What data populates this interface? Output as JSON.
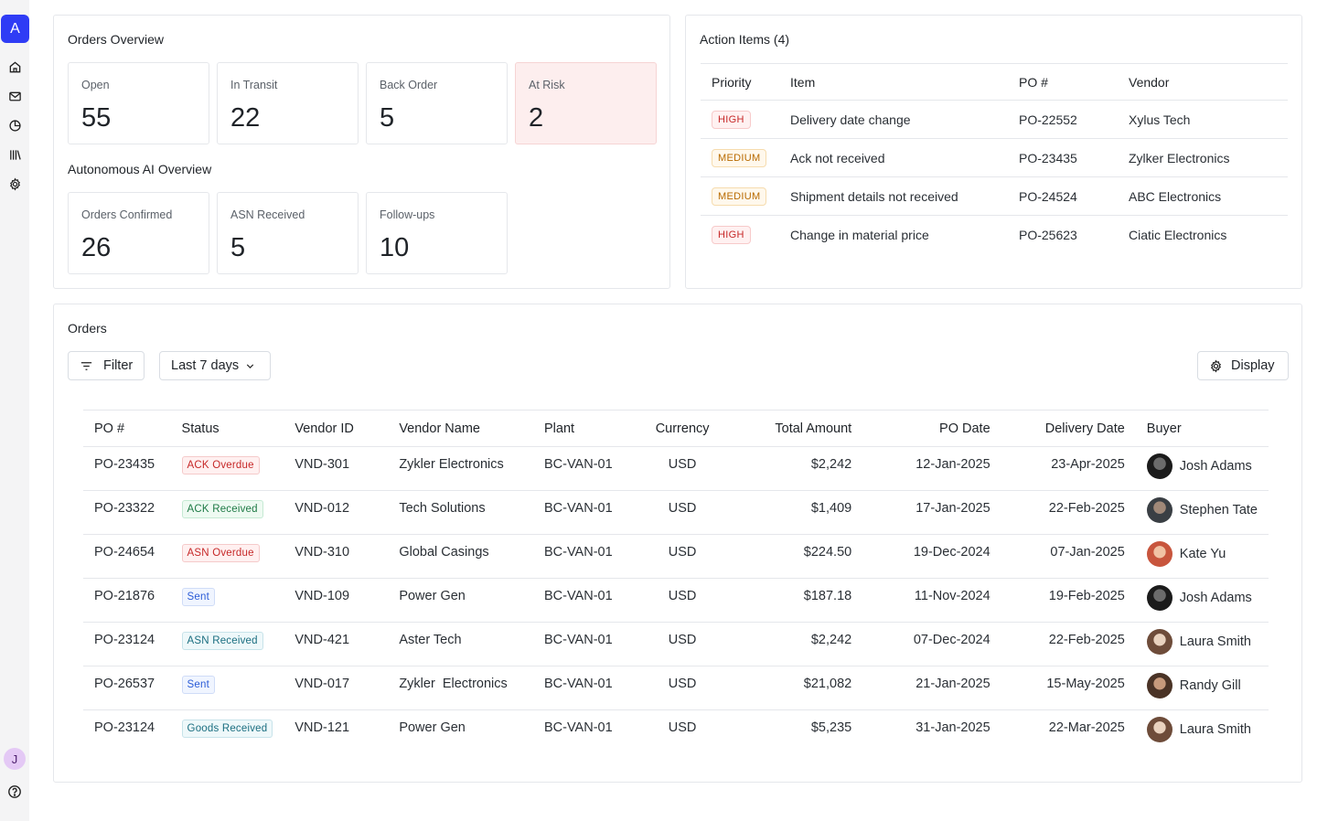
{
  "sidebar": {
    "logo": "A",
    "icons": [
      "home-icon",
      "mail-icon",
      "pie-chart-icon",
      "library-icon",
      "gear-icon"
    ],
    "user_initial": "J"
  },
  "orders_overview": {
    "title": "Orders Overview",
    "stats": [
      {
        "label": "Open",
        "value": "55"
      },
      {
        "label": "In Transit",
        "value": "22"
      },
      {
        "label": "Back Order",
        "value": "5"
      },
      {
        "label": "At Risk",
        "value": "2"
      }
    ]
  },
  "ai_overview": {
    "title": "Autonomous AI Overview",
    "stats": [
      {
        "label": "Orders Confirmed",
        "value": "26"
      },
      {
        "label": "ASN Received",
        "value": "5"
      },
      {
        "label": "Follow-ups",
        "value": "10"
      }
    ]
  },
  "action_items": {
    "title": "Action Items (4)",
    "columns": [
      "Priority",
      "Item",
      "PO #",
      "Vendor"
    ],
    "rows": [
      {
        "priority": "HIGH",
        "item": "Delivery date change",
        "po": "PO-22552",
        "vendor": "Xylus Tech"
      },
      {
        "priority": "MEDIUM",
        "item": "Ack not received",
        "po": "PO-23435",
        "vendor": "Zylker Electronics"
      },
      {
        "priority": "MEDIUM",
        "item": "Shipment details not received",
        "po": "PO-24524",
        "vendor": "ABC Electronics"
      },
      {
        "priority": "HIGH",
        "item": "Change in material price",
        "po": "PO-25623",
        "vendor": "Ciatic Electronics"
      }
    ]
  },
  "orders": {
    "title": "Orders",
    "filter_label": "Filter",
    "range_label": "Last 7 days",
    "display_label": "Display",
    "columns": [
      "PO #",
      "Status",
      "Vendor ID",
      "Vendor Name",
      "Plant",
      "Currency",
      "Total Amount",
      "PO Date",
      "Delivery Date",
      "Buyer"
    ],
    "rows": [
      {
        "po": "PO-23435",
        "status": "ACK Overdue",
        "vendor_id": "VND-301",
        "vendor_name": "Zykler Electronics",
        "plant": "BC-VAN-01",
        "currency": "USD",
        "amount": "$2,242",
        "po_date": "12-Jan-2025",
        "delivery_date": "23-Apr-2025",
        "buyer": "Josh Adams"
      },
      {
        "po": "PO-23322",
        "status": "ACK Received",
        "vendor_id": "VND-012",
        "vendor_name": "Tech Solutions",
        "plant": "BC-VAN-01",
        "currency": "USD",
        "amount": "$1,409",
        "po_date": "17-Jan-2025",
        "delivery_date": "22-Feb-2025",
        "buyer": "Stephen Tate"
      },
      {
        "po": "PO-24654",
        "status": "ASN Overdue",
        "vendor_id": "VND-310",
        "vendor_name": "Global Casings",
        "plant": "BC-VAN-01",
        "currency": "USD",
        "amount": "$224.50",
        "po_date": "19-Dec-2024",
        "delivery_date": "07-Jan-2025",
        "buyer": "Kate Yu"
      },
      {
        "po": "PO-21876",
        "status": "Sent",
        "vendor_id": "VND-109",
        "vendor_name": "Power Gen",
        "plant": "BC-VAN-01",
        "currency": "USD",
        "amount": "$187.18",
        "po_date": "11-Nov-2024",
        "delivery_date": "19-Feb-2025",
        "buyer": "Josh Adams"
      },
      {
        "po": "PO-23124",
        "status": "ASN Received",
        "vendor_id": "VND-421",
        "vendor_name": "Aster Tech",
        "plant": "BC-VAN-01",
        "currency": "USD",
        "amount": "$2,242",
        "po_date": "07-Dec-2024",
        "delivery_date": "22-Feb-2025",
        "buyer": "Laura Smith"
      },
      {
        "po": "PO-26537",
        "status": "Sent",
        "vendor_id": "VND-017",
        "vendor_name": "Zykler  Electronics",
        "plant": "BC-VAN-01",
        "currency": "USD",
        "amount": "$21,082",
        "po_date": "21-Jan-2025",
        "delivery_date": "15-May-2025",
        "buyer": "Randy Gill"
      },
      {
        "po": "PO-23124",
        "status": "Goods Received",
        "vendor_id": "VND-121",
        "vendor_name": "Power Gen",
        "plant": "BC-VAN-01",
        "currency": "USD",
        "amount": "$5,235",
        "po_date": "31-Jan-2025",
        "delivery_date": "22-Mar-2025",
        "buyer": "Laura Smith"
      }
    ]
  },
  "colors": {
    "accent": "#2f3cf5",
    "status_overdue": "#c62828",
    "status_received": "#1e7a45",
    "status_sent": "#2a5bd7",
    "status_asn_received": "#1a6e80",
    "priority_medium": "#b86a00",
    "at_risk_bg": "#fdeeee"
  }
}
